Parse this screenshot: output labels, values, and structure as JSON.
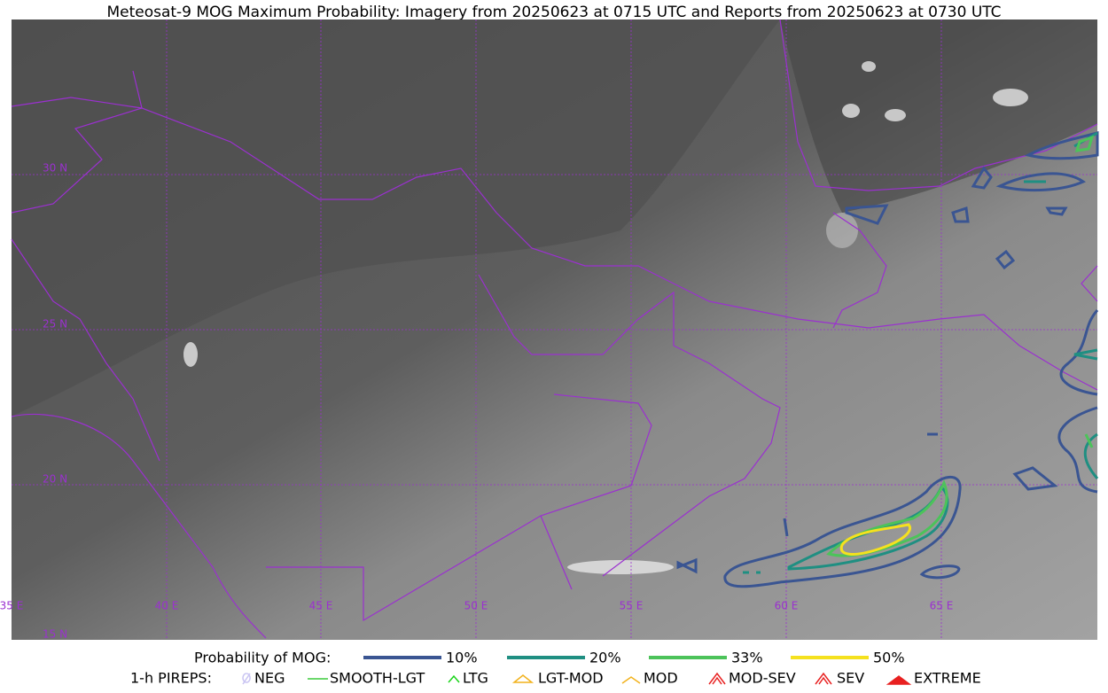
{
  "title": "Meteosat-9 MOG Maximum Probability: Imagery from 20250623 at 0715 UTC and Reports from 20250623 at 0730 UTC",
  "map": {
    "lat_labels": [
      "30 N",
      "25 N",
      "20 N",
      "15 N"
    ],
    "lon_labels": [
      "35 E",
      "40 E",
      "45 E",
      "50 E",
      "55 E",
      "60 E",
      "65 E"
    ]
  },
  "legend": {
    "probability": {
      "label": "Probability of MOG:",
      "items": [
        {
          "label": "10%",
          "color": "#3a5592"
        },
        {
          "label": "20%",
          "color": "#1f8f82"
        },
        {
          "label": "33%",
          "color": "#4cc35a"
        },
        {
          "label": "50%",
          "color": "#f5e11e"
        }
      ]
    },
    "pireps": {
      "label": "1-h PIREPS:",
      "items": [
        {
          "label": "NEG",
          "color": "#c9c4f2"
        },
        {
          "label": "SMOOTH-LGT",
          "color": "#3ccc3c"
        },
        {
          "label": "LTG",
          "color": "#19d419"
        },
        {
          "label": "LGT-MOD",
          "color": "#f2b21c"
        },
        {
          "label": "MOD",
          "color": "#f2b21c"
        },
        {
          "label": "MOD-SEV",
          "color": "#e82020"
        },
        {
          "label": "SEV",
          "color": "#e82020"
        },
        {
          "label": "EXTREME",
          "color": "#e82020"
        }
      ]
    }
  }
}
